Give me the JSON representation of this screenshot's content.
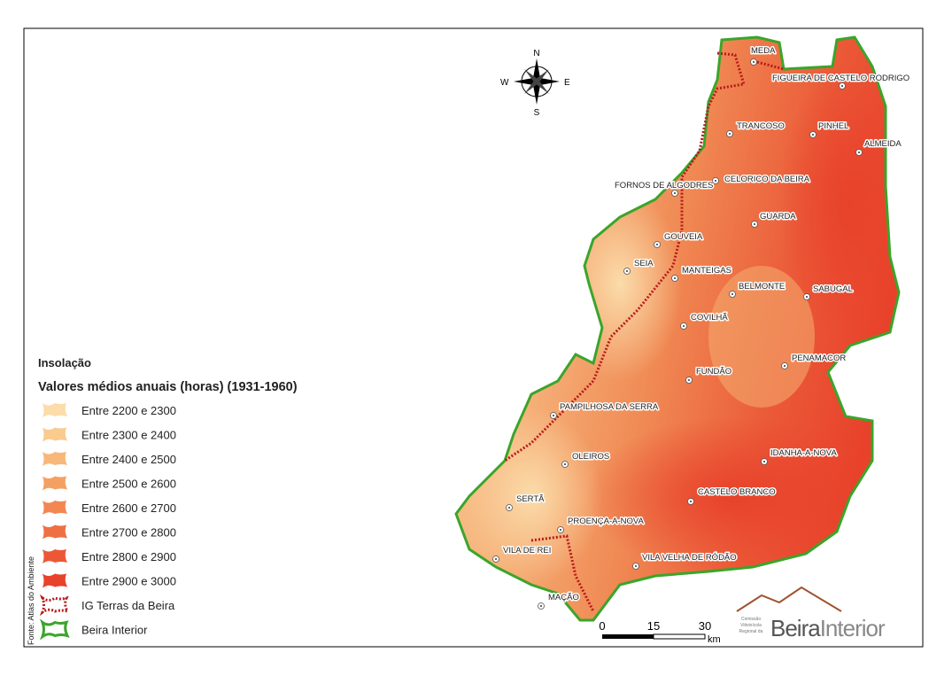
{
  "map": {
    "title": "Insolação",
    "subtitle": "Valores médios anuais (horas) (1931-1960)",
    "legend": [
      {
        "label": "Entre 2200 e 2300",
        "color": "#fbdcaa",
        "style": "fill"
      },
      {
        "label": "Entre 2300 e 2400",
        "color": "#f9cb8f",
        "style": "fill"
      },
      {
        "label": "Entre 2400 e 2500",
        "color": "#f7b87a",
        "style": "fill"
      },
      {
        "label": "Entre 2500 e 2600",
        "color": "#f5a063",
        "style": "fill"
      },
      {
        "label": "Entre 2600 e 2700",
        "color": "#f28752",
        "style": "fill"
      },
      {
        "label": "Entre 2700 e 2800",
        "color": "#ef6f44",
        "style": "fill"
      },
      {
        "label": "Entre 2800 e 2900",
        "color": "#ec5837",
        "style": "fill"
      },
      {
        "label": "Entre 2900 e 3000",
        "color": "#e8422b",
        "style": "fill"
      },
      {
        "label": "IG Terras da Beira",
        "color": "#b81a1a",
        "style": "dotted"
      },
      {
        "label": "Beira Interior",
        "color": "#3aa52a",
        "style": "outline"
      }
    ],
    "places": [
      "MEDA",
      "FIGUEIRA DE CASTELO RODRIGO",
      "TRANCOSO",
      "PINHEL",
      "ALMEIDA",
      "FORNOS DE ALGODRES",
      "CELORICO DA BEIRA",
      "GUARDA",
      "GOUVEIA",
      "SEIA",
      "MANTEIGAS",
      "BELMONTE",
      "SABUGAL",
      "COVILHÃ",
      "PENAMACOR",
      "FUNDÃO",
      "PAMPILHOSA DA SERRA",
      "OLEIROS",
      "IDANHA-A-NOVA",
      "CASTELO BRANCO",
      "SERTÃ",
      "PROENÇA-A-NOVA",
      "VILA DE REI",
      "VILA VELHA DE RÓDÃO",
      "MAÇÃO"
    ],
    "compass": {
      "n": "N",
      "s": "S",
      "e": "E",
      "w": "W"
    },
    "scale": {
      "ticks": [
        "0",
        "15",
        "30"
      ],
      "unit": "km"
    },
    "source": "Fonte: Atlas do Ambiente",
    "logo": {
      "small": [
        "Comissão",
        "Vitivinícola",
        "Regional da"
      ],
      "name1": "Beira",
      "name2": "Interior"
    }
  }
}
